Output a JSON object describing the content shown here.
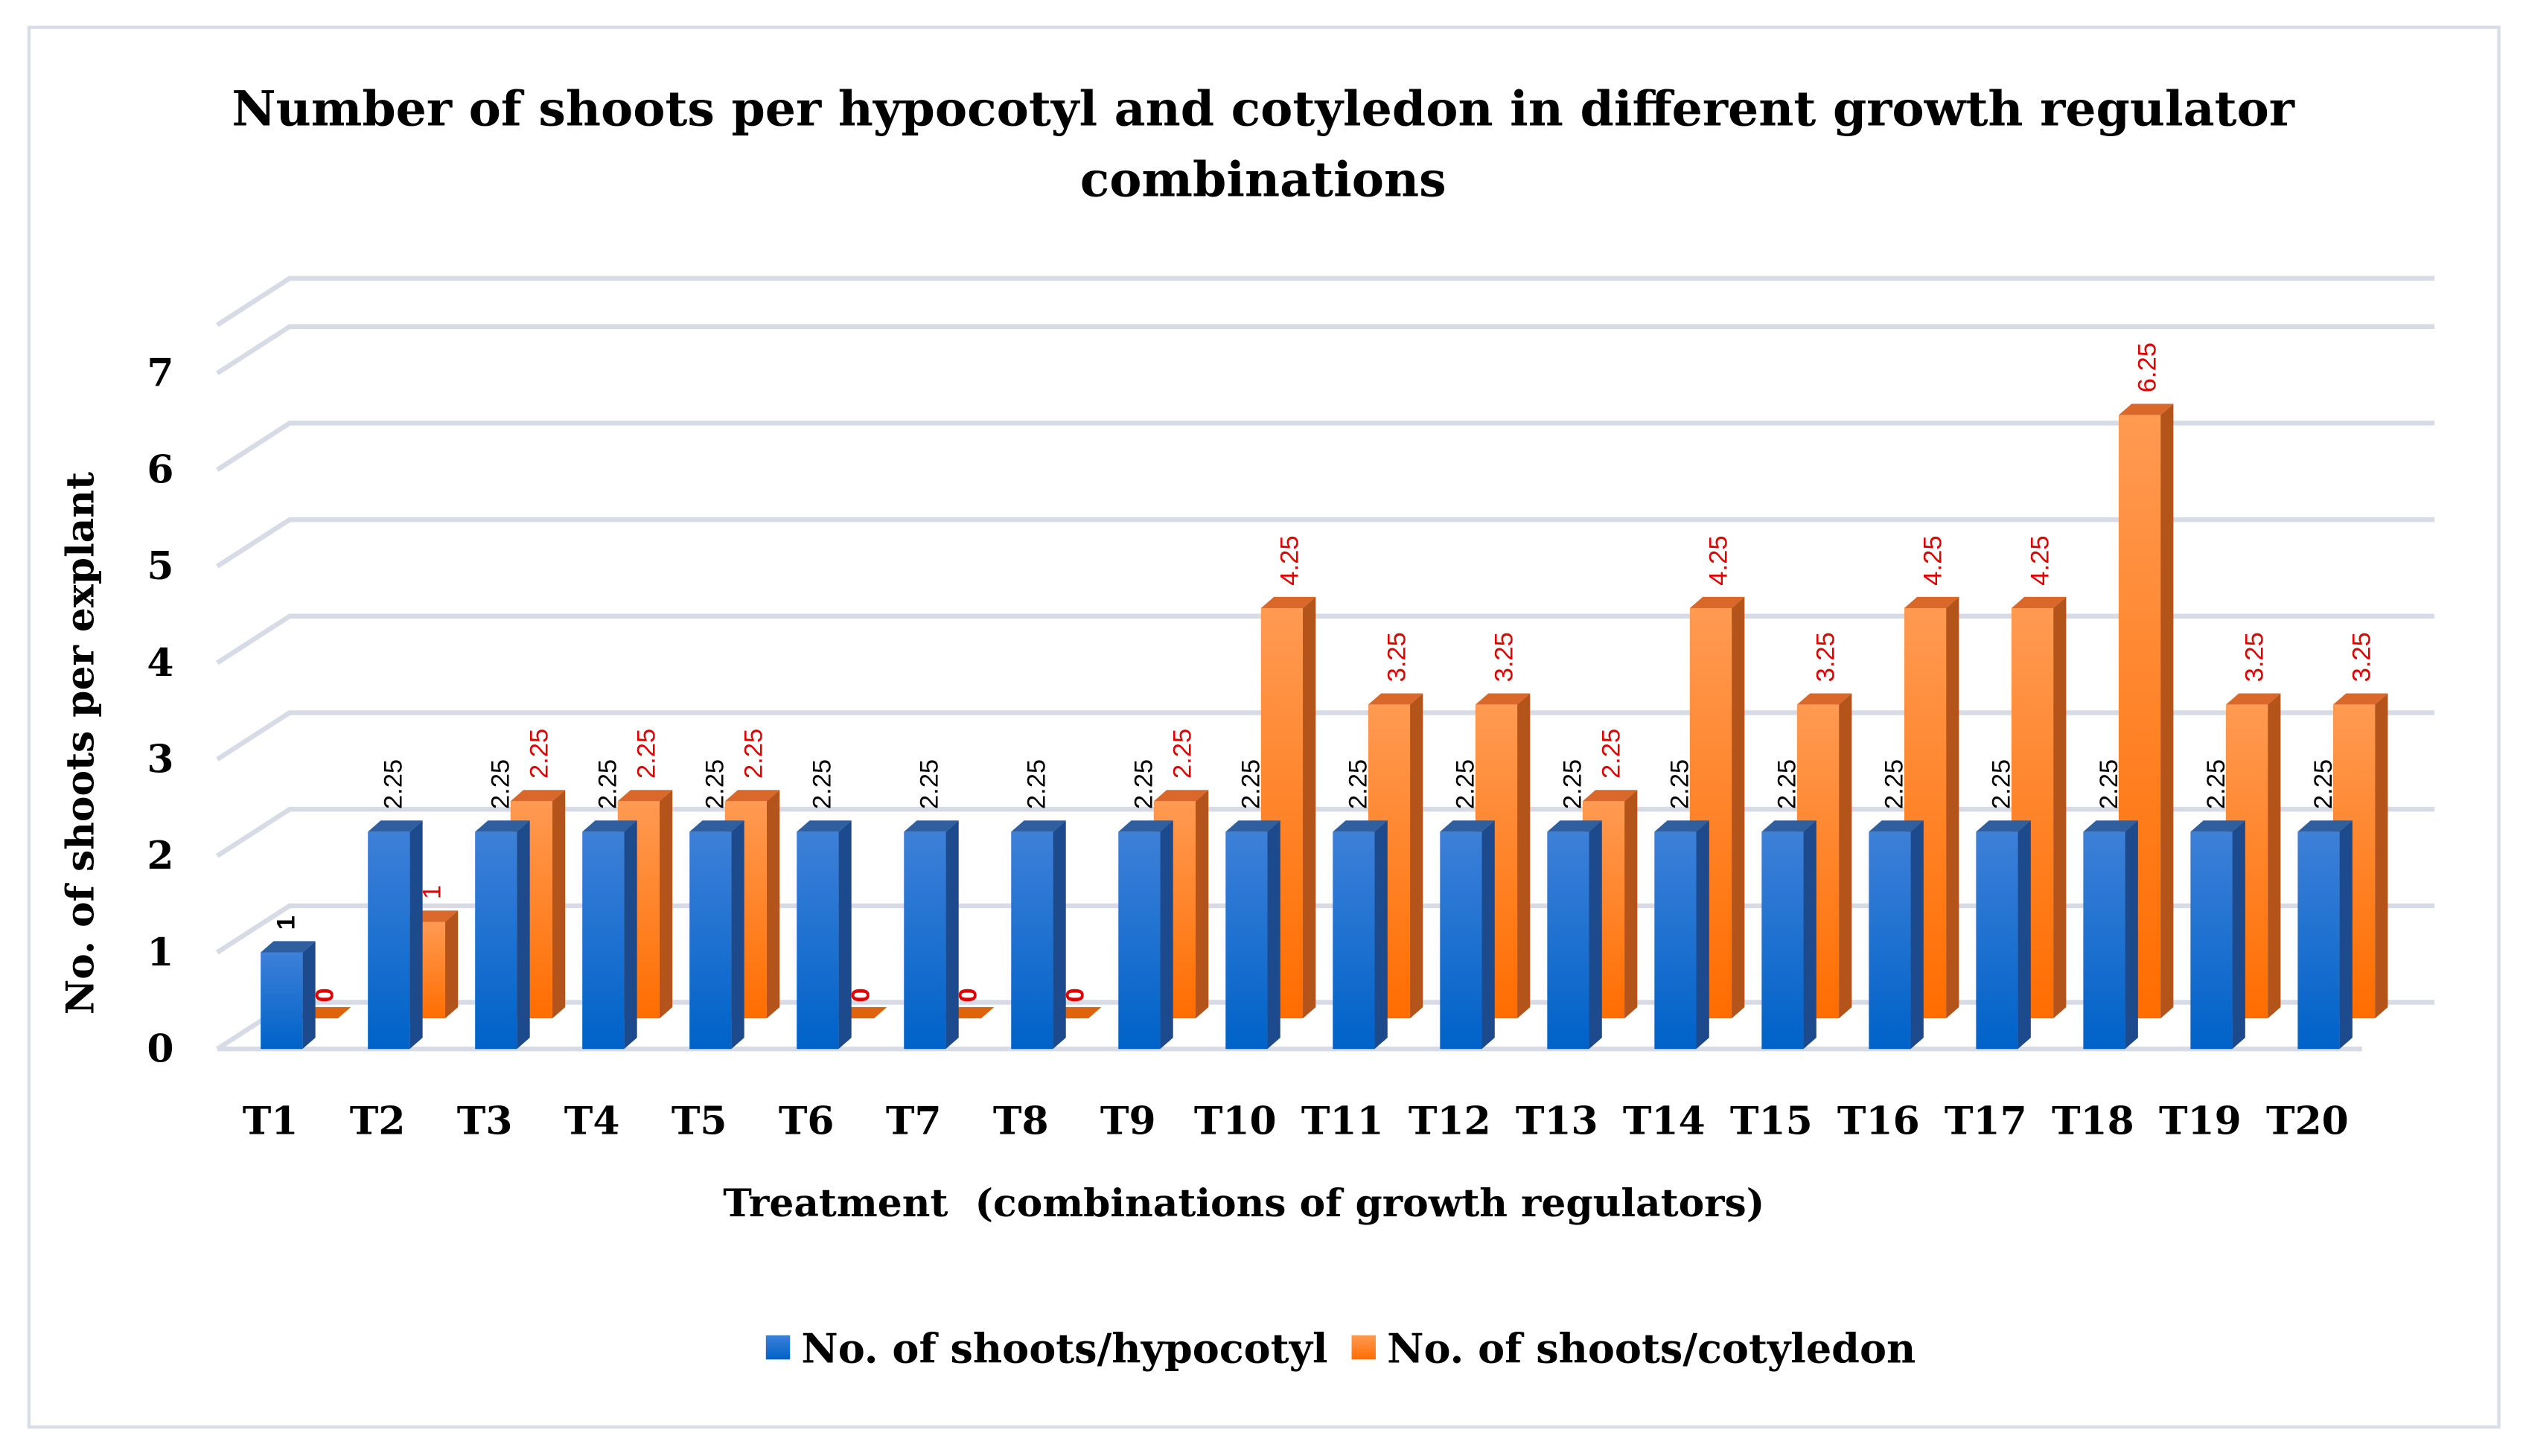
{
  "chart_data": {
    "type": "bar",
    "title_line1": "Number of shoots per hypocotyl and cotyledon in different growth regulator",
    "title_line2": "combinations",
    "xlabel": "Treatment  (combinations of growth regulators)",
    "ylabel": "No. of shoots per explant",
    "ylim": [
      0,
      7
    ],
    "yticks": [
      "0",
      "1",
      "2",
      "3",
      "4",
      "5",
      "6",
      "7"
    ],
    "grid": true,
    "legend_position": "bottom",
    "categories": [
      "T1",
      "T2",
      "T3",
      "T4",
      "T5",
      "T6",
      "T7",
      "T8",
      "T9",
      "T10",
      "T11",
      "T12",
      "T13",
      "T14",
      "T15",
      "T16",
      "T17",
      "T18",
      "T19",
      "T20"
    ],
    "series": [
      {
        "name": "No. of shoots/hypocotyl",
        "color": "#1565c8",
        "label_color": "#000000",
        "values": [
          1,
          2.25,
          2.25,
          2.25,
          2.25,
          2.25,
          2.25,
          2.25,
          2.25,
          2.25,
          2.25,
          2.25,
          2.25,
          2.25,
          2.25,
          2.25,
          2.25,
          2.25,
          2.25,
          2.25
        ]
      },
      {
        "name": "No. of shoots/cotyledon",
        "color": "#ff7a1a",
        "label_color": "#e00000",
        "values": [
          0,
          1,
          2.25,
          2.25,
          2.25,
          0,
          0,
          0,
          2.25,
          4.25,
          3.25,
          3.25,
          2.25,
          4.25,
          3.25,
          4.25,
          4.25,
          6.25,
          3.25,
          3.25
        ]
      }
    ]
  }
}
